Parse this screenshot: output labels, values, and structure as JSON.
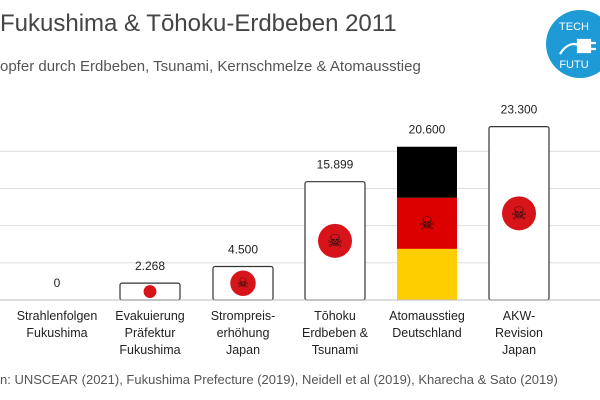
{
  "title": "Fukushima & Tōhoku-Erdbeben 2011",
  "subtitle": "opfer durch Erdbeben, Tsunami, Kernschmelze & Atomausstieg",
  "source": "n: UNSCEAR (2021), Fukushima Prefecture (2019), Neidell et al (2019), Kharecha & Sato (2019)",
  "badge": {
    "top_text": "TECH",
    "bottom_text": "FUTU",
    "color": "#1e9ad6"
  },
  "colors": {
    "japan_red": "#d7141a",
    "bar_border": "#333333",
    "grid": "#dddddd",
    "de_black": "#000000",
    "de_red": "#dd0000",
    "de_gold": "#ffce00"
  },
  "chart_data": {
    "type": "bar",
    "ylim": [
      0,
      25000
    ],
    "grid": true,
    "categories": [
      [
        "Strahlenfolgen",
        "Fukushima"
      ],
      [
        "Evakuierung",
        "Präfektur",
        "Fukushima"
      ],
      [
        "Strompreis-",
        "erhöhung",
        "Japan"
      ],
      [
        "Tōhoku",
        "Erdbeben &",
        "Tsunami"
      ],
      [
        "Atomausstieg",
        "Deutschland"
      ],
      [
        "AKW-",
        "Revision",
        "Japan"
      ]
    ],
    "values": [
      0,
      2268,
      4500,
      15899,
      20600,
      23300
    ],
    "value_labels": [
      "0",
      "2.268",
      "4.500",
      "15.899",
      "20.600",
      "23.300"
    ],
    "styles": [
      "japan",
      "japan",
      "japan",
      "japan",
      "germany",
      "japan"
    ]
  }
}
